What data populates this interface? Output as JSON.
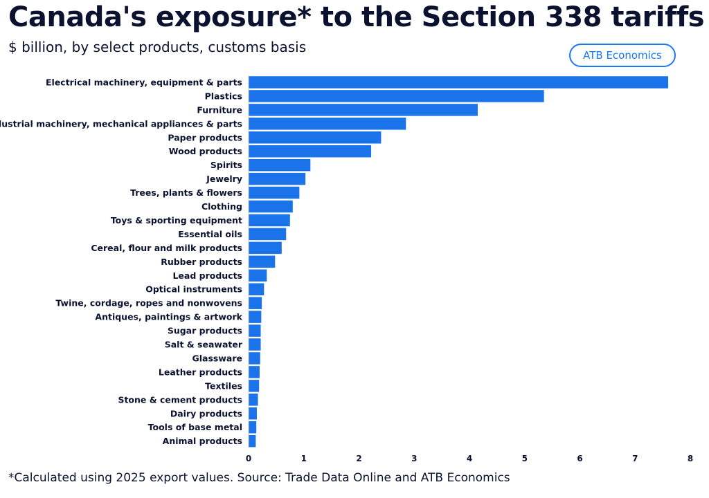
{
  "header": {
    "title": "Canada's exposure* to the Section 338 tariffs",
    "subtitle": "$ billion, by select products, customs basis",
    "badge": "ATB Economics"
  },
  "footnote": "*Calculated using 2025 export values. Source: Trade Data Online and ATB Economics",
  "colors": {
    "bar": "#1a73e8",
    "badge": "#1877f2",
    "text": "#0b1230"
  },
  "chart_data": {
    "type": "bar",
    "orientation": "horizontal",
    "title": "Canada's exposure* to the Section 338 tariffs",
    "subtitle": "$ billion, by select products, customs basis",
    "xlabel": "",
    "ylabel": "",
    "xlim": [
      0,
      8
    ],
    "xticks": [
      0,
      1,
      2,
      3,
      4,
      5,
      6,
      7,
      8
    ],
    "grid": false,
    "legend": "none",
    "categories": [
      "Electrical machinery, equipment & parts",
      "Plastics",
      "Furniture",
      "Industrial machinery, mechanical appliances & parts",
      "Paper products",
      "Wood products",
      "Spirits",
      "Jewelry",
      "Trees, plants & flowers",
      "Clothing",
      "Toys & sporting equipment",
      "Essential oils",
      "Cereal, flour and milk products",
      "Rubber products",
      "Lead products",
      "Optical instruments",
      "Twine, cordage, ropes and nonwovens",
      "Antiques, paintings & artwork",
      "Sugar products",
      "Salt & seawater",
      "Glassware",
      "Leather products",
      "Textiles",
      "Stone & cement products",
      "Dairy products",
      "Tools of base metal",
      "Animal products"
    ],
    "values": [
      7.6,
      5.35,
      4.15,
      2.85,
      2.4,
      2.22,
      1.12,
      1.03,
      0.92,
      0.8,
      0.75,
      0.68,
      0.6,
      0.48,
      0.33,
      0.28,
      0.24,
      0.23,
      0.22,
      0.22,
      0.21,
      0.2,
      0.19,
      0.17,
      0.15,
      0.14,
      0.13
    ]
  }
}
